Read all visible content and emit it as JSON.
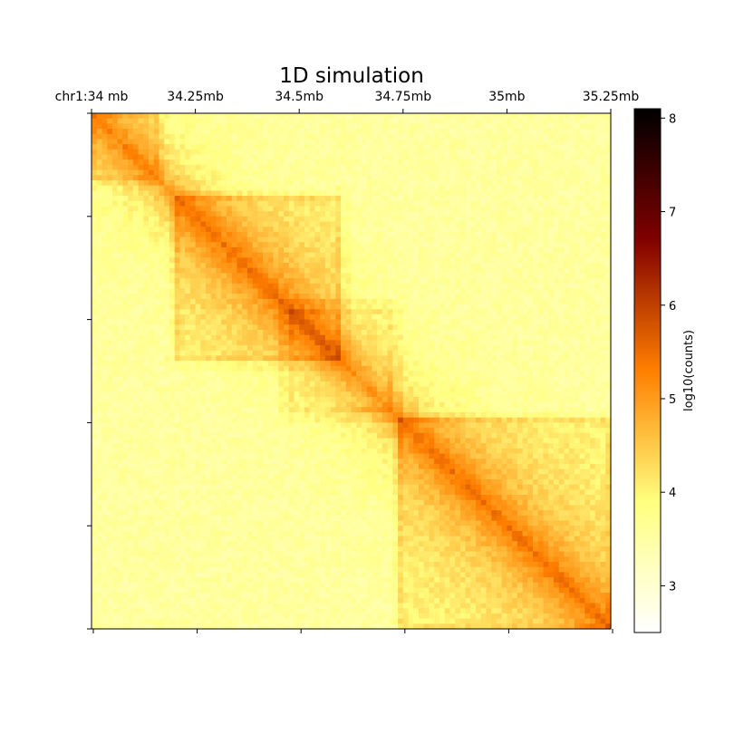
{
  "chart_data": {
    "type": "heatmap",
    "title": "1D simulation",
    "x_axis": {
      "position": "top",
      "ticks": [
        {
          "value": 34.0,
          "label": "chr1:34 mb"
        },
        {
          "value": 34.25,
          "label": "34.25mb"
        },
        {
          "value": 34.5,
          "label": "34.5mb"
        },
        {
          "value": 34.75,
          "label": "34.75mb"
        },
        {
          "value": 35.0,
          "label": "35mb"
        },
        {
          "value": 35.25,
          "label": "35.25mb"
        }
      ],
      "range_mb": [
        34.0,
        35.25
      ]
    },
    "y_axis": {
      "tick_values": [
        34.0,
        34.25,
        34.5,
        34.75,
        35.0,
        35.25
      ],
      "tick_labels_shown": false,
      "range_mb": [
        34.0,
        35.25
      ]
    },
    "colorbar": {
      "label": "log10(counts)",
      "range": [
        2.5,
        8.1
      ],
      "ticks": [
        3,
        4,
        5,
        6,
        7,
        8
      ],
      "colormap": "afmhot_r"
    },
    "domains": [
      {
        "start_mb": 34.0,
        "end_mb": 34.165,
        "strength": 0.35
      },
      {
        "start_mb": 34.2,
        "end_mb": 34.605,
        "strength": 0.55
      },
      {
        "start_mb": 34.47,
        "end_mb": 34.73,
        "strength": 0.2
      },
      {
        "start_mb": 34.74,
        "end_mb": 35.25,
        "strength": 0.55
      }
    ],
    "base_level_log10": 3.55,
    "diagonal_level_log10": 4.9
  }
}
